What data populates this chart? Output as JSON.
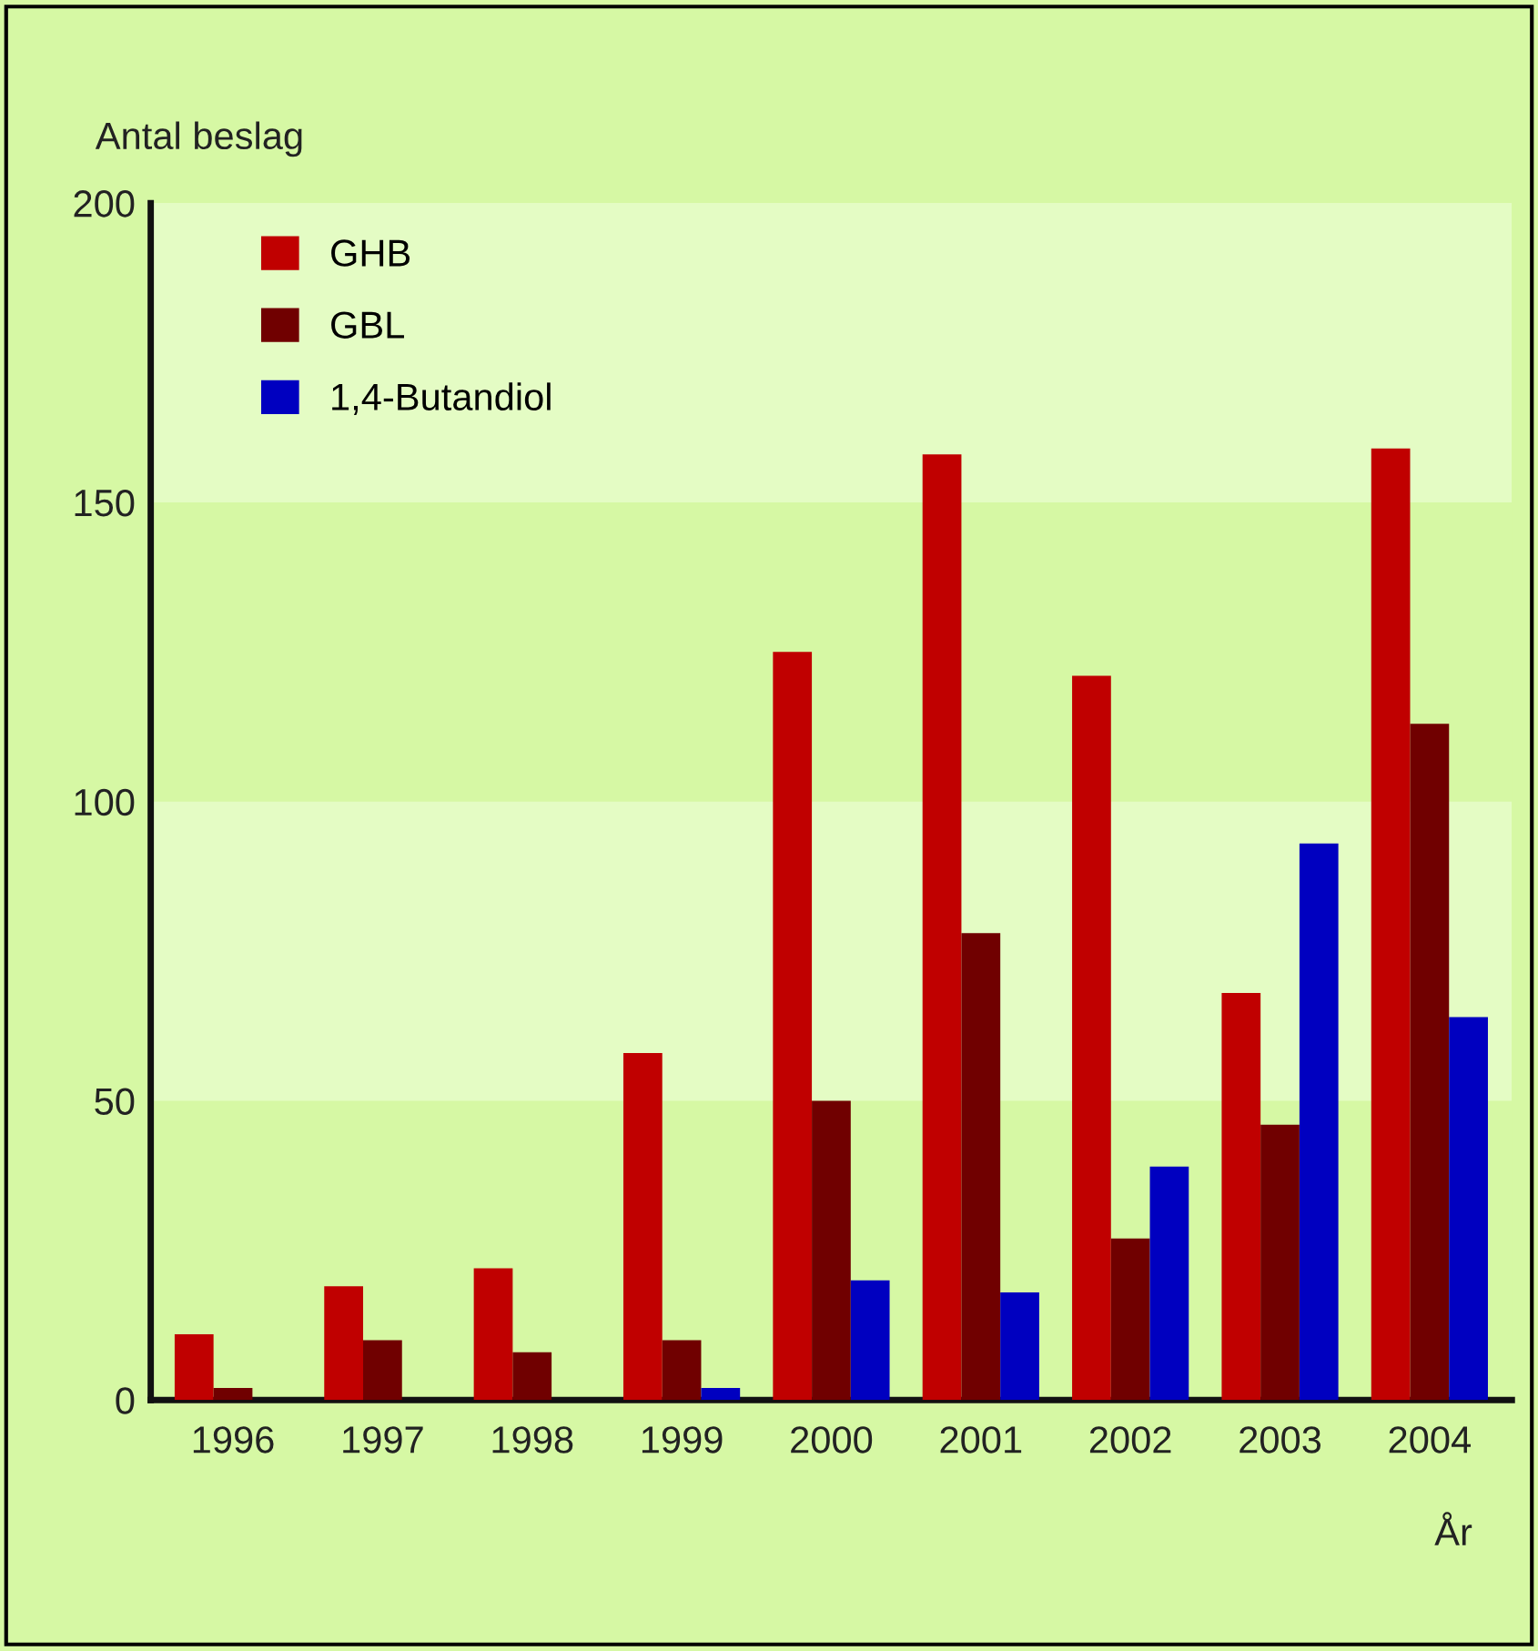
{
  "chart_data": {
    "type": "bar",
    "xlabel": "År",
    "ylabel": "Antal beslag",
    "categories": [
      "1996",
      "1997",
      "1998",
      "1999",
      "2000",
      "2001",
      "2002",
      "2003",
      "2004"
    ],
    "series": [
      {
        "name": "GHB",
        "color": "#c00000",
        "values": [
          11,
          19,
          22,
          58,
          125,
          158,
          121,
          68,
          159
        ]
      },
      {
        "name": "GBL",
        "color": "#700000",
        "values": [
          2,
          10,
          8,
          10,
          50,
          78,
          27,
          46,
          113
        ]
      },
      {
        "name": "1,4-Butandiol",
        "color": "#0000c0",
        "values": [
          0,
          0,
          0,
          2,
          20,
          18,
          39,
          93,
          64
        ]
      }
    ],
    "ylim": [
      0,
      200
    ],
    "yticks": [
      0,
      50,
      100,
      150,
      200
    ],
    "bands": [
      {
        "axis": "y",
        "from": 50,
        "to": 100,
        "color": "#e4fcc4"
      },
      {
        "axis": "y",
        "from": 150,
        "to": 200,
        "color": "#e4fcc4"
      }
    ],
    "grid": false,
    "legend": "top left"
  }
}
